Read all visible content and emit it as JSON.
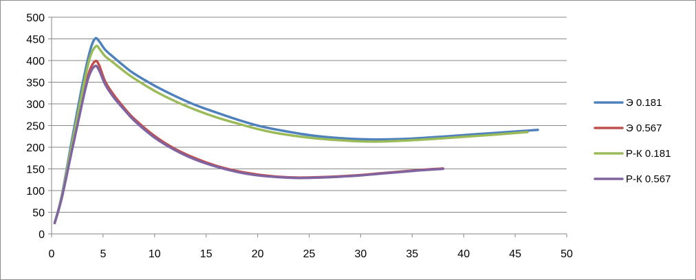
{
  "chart_data": {
    "type": "line",
    "title": "",
    "xlabel": "",
    "ylabel": "",
    "xlim": [
      0,
      50
    ],
    "ylim": [
      0,
      500
    ],
    "x_ticks": [
      0,
      5,
      10,
      15,
      20,
      25,
      30,
      35,
      40,
      45,
      50
    ],
    "y_ticks": [
      0,
      50,
      100,
      150,
      200,
      250,
      300,
      350,
      400,
      450,
      500
    ],
    "grid": "horizontal",
    "legend_position": "right",
    "series": [
      {
        "name": "Э 0.181",
        "color": "#4f81bd",
        "points": [
          [
            0.3,
            25
          ],
          [
            1,
            90
          ],
          [
            2,
            220
          ],
          [
            3,
            345
          ],
          [
            3.7,
            420
          ],
          [
            4.2,
            450
          ],
          [
            4.6,
            445
          ],
          [
            5.2,
            425
          ],
          [
            6,
            408
          ],
          [
            7,
            388
          ],
          [
            8,
            370
          ],
          [
            10,
            342
          ],
          [
            12,
            318
          ],
          [
            14,
            297
          ],
          [
            16,
            280
          ],
          [
            18,
            264
          ],
          [
            20,
            250
          ],
          [
            22,
            240
          ],
          [
            25,
            228
          ],
          [
            28,
            221
          ],
          [
            31,
            218
          ],
          [
            34,
            219
          ],
          [
            37,
            223
          ],
          [
            40,
            228
          ],
          [
            43,
            233
          ],
          [
            46,
            238
          ],
          [
            47.2,
            240
          ]
        ]
      },
      {
        "name": "Э 0.567",
        "color": "#c0504d",
        "points": [
          [
            0.3,
            25
          ],
          [
            1,
            85
          ],
          [
            2,
            200
          ],
          [
            3,
            310
          ],
          [
            3.6,
            370
          ],
          [
            4.2,
            398
          ],
          [
            4.6,
            390
          ],
          [
            5.2,
            352
          ],
          [
            6,
            322
          ],
          [
            7,
            292
          ],
          [
            8,
            266
          ],
          [
            10,
            226
          ],
          [
            12,
            196
          ],
          [
            14,
            174
          ],
          [
            16,
            157
          ],
          [
            18,
            145
          ],
          [
            20,
            137
          ],
          [
            22,
            132
          ],
          [
            24,
            130
          ],
          [
            26,
            131
          ],
          [
            28,
            133
          ],
          [
            30,
            136
          ],
          [
            32,
            140
          ],
          [
            34,
            144
          ],
          [
            36,
            148
          ],
          [
            38,
            151
          ]
        ]
      },
      {
        "name": "Р-К 0.181",
        "color": "#9bbb59",
        "points": [
          [
            0.3,
            25
          ],
          [
            1,
            88
          ],
          [
            2,
            210
          ],
          [
            3,
            330
          ],
          [
            3.7,
            405
          ],
          [
            4.3,
            433
          ],
          [
            4.7,
            425
          ],
          [
            5.2,
            410
          ],
          [
            6,
            395
          ],
          [
            7,
            376
          ],
          [
            8,
            359
          ],
          [
            10,
            330
          ],
          [
            12,
            306
          ],
          [
            14,
            286
          ],
          [
            16,
            269
          ],
          [
            18,
            255
          ],
          [
            20,
            242
          ],
          [
            22,
            232
          ],
          [
            25,
            222
          ],
          [
            28,
            216
          ],
          [
            31,
            213
          ],
          [
            34,
            215
          ],
          [
            37,
            219
          ],
          [
            40,
            224
          ],
          [
            43,
            229
          ],
          [
            46.2,
            235
          ]
        ]
      },
      {
        "name": "Р-К 0.567",
        "color": "#8064a2",
        "points": [
          [
            0.3,
            25
          ],
          [
            1,
            84
          ],
          [
            2,
            195
          ],
          [
            3,
            305
          ],
          [
            3.6,
            362
          ],
          [
            4.2,
            387
          ],
          [
            4.6,
            378
          ],
          [
            5.2,
            345
          ],
          [
            6,
            316
          ],
          [
            7,
            288
          ],
          [
            8,
            262
          ],
          [
            10,
            222
          ],
          [
            12,
            193
          ],
          [
            14,
            171
          ],
          [
            16,
            155
          ],
          [
            18,
            143
          ],
          [
            20,
            135
          ],
          [
            22,
            131
          ],
          [
            24,
            129
          ],
          [
            26,
            130
          ],
          [
            28,
            132
          ],
          [
            30,
            135
          ],
          [
            32,
            139
          ],
          [
            34,
            143
          ],
          [
            36,
            147
          ],
          [
            38,
            150
          ]
        ]
      }
    ]
  }
}
